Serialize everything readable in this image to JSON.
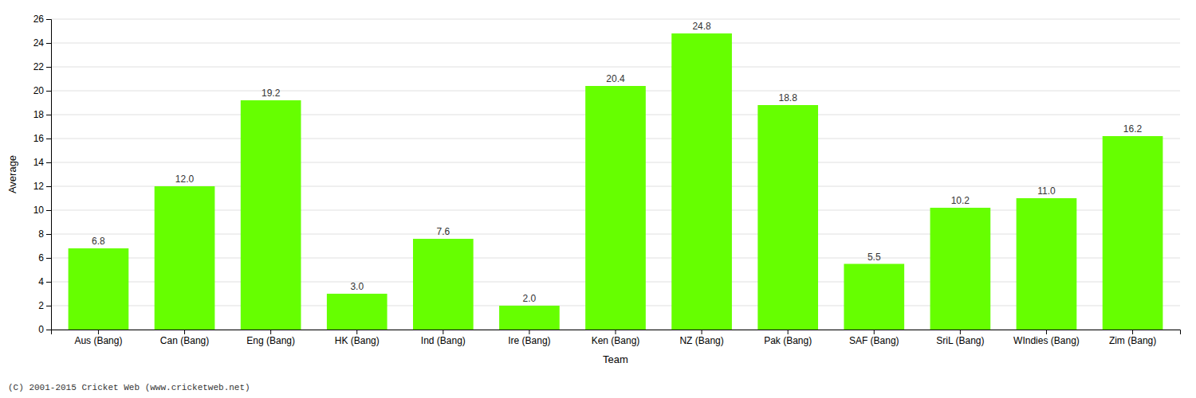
{
  "chart_data": {
    "type": "bar",
    "categories": [
      "Aus (Bang)",
      "Can (Bang)",
      "Eng (Bang)",
      "HK (Bang)",
      "Ind (Bang)",
      "Ire (Bang)",
      "Ken (Bang)",
      "NZ (Bang)",
      "Pak (Bang)",
      "SAF (Bang)",
      "SriL (Bang)",
      "WIndies (Bang)",
      "Zim (Bang)"
    ],
    "values": [
      6.8,
      12.0,
      19.2,
      3.0,
      7.6,
      2.0,
      20.4,
      24.8,
      18.8,
      5.5,
      10.2,
      11.0,
      16.2
    ],
    "value_labels": [
      "6.8",
      "12.0",
      "19.2",
      "3.0",
      "7.6",
      "2.0",
      "20.4",
      "24.8",
      "18.8",
      "5.5",
      "10.2",
      "11.0",
      "16.2"
    ],
    "color": "#66ff00",
    "xlabel": "Team",
    "ylabel": "Average",
    "ylim": [
      0,
      26
    ],
    "yticks": [
      0,
      2,
      4,
      6,
      8,
      10,
      12,
      14,
      16,
      18,
      20,
      22,
      24,
      26
    ],
    "grid": true,
    "data_labels": true,
    "annotations": [
      "(C) 2001-2015 Cricket Web (www.cricketweb.net)"
    ]
  }
}
